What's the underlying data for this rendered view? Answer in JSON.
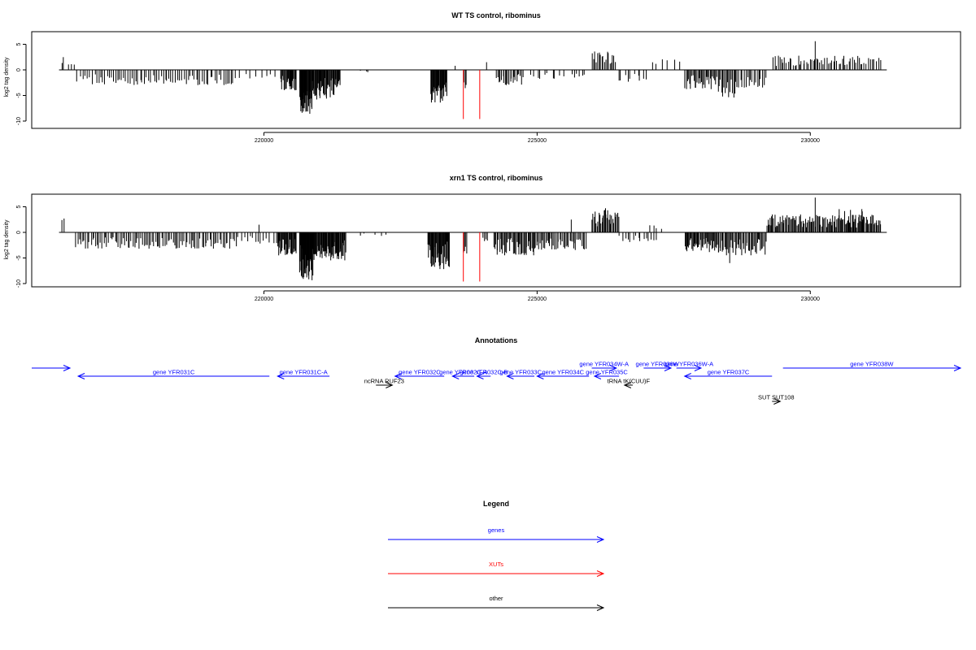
{
  "chart_data": [
    {
      "type": "bar",
      "title": "WT TS control, ribominus",
      "ylabel": "log2 tag density",
      "xlim": [
        215750,
        232750
      ],
      "ylim": [
        -10,
        7.5
      ],
      "x_ticks": [
        220000,
        225000,
        230000
      ],
      "x_tick_labels": [
        "220000",
        "225000",
        "230000"
      ],
      "y_ticks": [
        -10,
        -5,
        0,
        5
      ],
      "y_tick_labels": [
        "-10",
        "-5",
        "0",
        "5"
      ],
      "grid": false,
      "markers": {
        "color": "#ff0000",
        "x": [
          223650,
          223950
        ],
        "y_from": -9.6
      },
      "signal_segments": [
        {
          "x0": 216300,
          "x1": 216350,
          "amp": 3.0,
          "n": 2
        },
        {
          "x0": 216400,
          "x1": 216550,
          "amp": 1.2,
          "n": 3
        },
        {
          "x0": 216550,
          "x1": 216850,
          "amp": -2.6,
          "n": 6
        },
        {
          "x0": 216850,
          "x1": 219500,
          "amp": -3.0,
          "n": 70
        },
        {
          "x0": 219500,
          "x1": 220300,
          "amp": -1.8,
          "n": 8
        },
        {
          "x0": 220300,
          "x1": 220600,
          "amp": -4.0,
          "n": 25
        },
        {
          "x0": 220650,
          "x1": 220900,
          "amp": -8.6,
          "n": 30
        },
        {
          "x0": 220900,
          "x1": 221400,
          "amp": -5.8,
          "n": 45
        },
        {
          "x0": 221700,
          "x1": 222000,
          "amp": -0.6,
          "n": 3
        },
        {
          "x0": 223050,
          "x1": 223350,
          "amp": -6.5,
          "n": 30
        },
        {
          "x0": 223450,
          "x1": 223550,
          "amp": 0.8,
          "n": 1
        },
        {
          "x0": 223650,
          "x1": 223720,
          "amp": -4.0,
          "n": 3
        },
        {
          "x0": 224050,
          "x1": 224100,
          "amp": 1.5,
          "n": 1
        },
        {
          "x0": 224250,
          "x1": 224750,
          "amp": -3.0,
          "n": 22
        },
        {
          "x0": 224850,
          "x1": 225500,
          "amp": -1.8,
          "n": 10
        },
        {
          "x0": 225600,
          "x1": 225900,
          "amp": -1.6,
          "n": 6
        },
        {
          "x0": 226000,
          "x1": 226450,
          "amp": 3.8,
          "n": 18
        },
        {
          "x0": 226450,
          "x1": 227050,
          "amp": -2.5,
          "n": 10
        },
        {
          "x0": 227050,
          "x1": 227700,
          "amp": 2.2,
          "n": 6
        },
        {
          "x0": 227700,
          "x1": 228300,
          "amp": -3.8,
          "n": 30
        },
        {
          "x0": 228300,
          "x1": 228650,
          "amp": -5.5,
          "n": 16
        },
        {
          "x0": 228650,
          "x1": 229200,
          "amp": -3.5,
          "n": 18
        },
        {
          "x0": 229300,
          "x1": 231000,
          "amp": 2.8,
          "n": 55
        },
        {
          "x0": 230080,
          "x1": 230100,
          "amp": 5.6,
          "n": 1
        },
        {
          "x0": 231000,
          "x1": 231300,
          "amp": 2.4,
          "n": 8
        }
      ]
    },
    {
      "type": "bar",
      "title": "xrn1 TS control, ribominus",
      "ylabel": "log2 tag density",
      "xlim": [
        215750,
        232750
      ],
      "ylim": [
        -10,
        7.5
      ],
      "x_ticks": [
        220000,
        225000,
        230000
      ],
      "x_tick_labels": [
        "220000",
        "225000",
        "230000"
      ],
      "y_ticks": [
        -10,
        -5,
        0,
        5
      ],
      "y_tick_labels": [
        "-10",
        "-5",
        "0",
        "5"
      ],
      "grid": false,
      "markers": {
        "color": "#ff0000",
        "x": [
          223650,
          223950
        ],
        "y_from": -9.6
      },
      "signal_segments": [
        {
          "x0": 216300,
          "x1": 216350,
          "amp": 3.0,
          "n": 2
        },
        {
          "x0": 216550,
          "x1": 216850,
          "amp": -3.2,
          "n": 10
        },
        {
          "x0": 216850,
          "x1": 219500,
          "amp": -3.2,
          "n": 90
        },
        {
          "x0": 219900,
          "x1": 219920,
          "amp": 1.5,
          "n": 1
        },
        {
          "x0": 219500,
          "x1": 220300,
          "amp": -2.2,
          "n": 15
        },
        {
          "x0": 220250,
          "x1": 220600,
          "amp": -4.5,
          "n": 30
        },
        {
          "x0": 220650,
          "x1": 220900,
          "amp": -9.5,
          "n": 35
        },
        {
          "x0": 220900,
          "x1": 221500,
          "amp": -5.5,
          "n": 55
        },
        {
          "x0": 221700,
          "x1": 222300,
          "amp": -0.8,
          "n": 5
        },
        {
          "x0": 223000,
          "x1": 223400,
          "amp": -7.2,
          "n": 40
        },
        {
          "x0": 223650,
          "x1": 223720,
          "amp": -4.5,
          "n": 4
        },
        {
          "x0": 224000,
          "x1": 224100,
          "amp": -2.0,
          "n": 4
        },
        {
          "x0": 224200,
          "x1": 225000,
          "amp": -4.5,
          "n": 45
        },
        {
          "x0": 225000,
          "x1": 225900,
          "amp": -3.5,
          "n": 40
        },
        {
          "x0": 225600,
          "x1": 225650,
          "amp": 2.5,
          "n": 1
        },
        {
          "x0": 226000,
          "x1": 226500,
          "amp": 4.5,
          "n": 28
        },
        {
          "x0": 226200,
          "x1": 226300,
          "amp": 5.0,
          "n": 2
        },
        {
          "x0": 226500,
          "x1": 227200,
          "amp": -2.2,
          "n": 15
        },
        {
          "x0": 227000,
          "x1": 227300,
          "amp": 2.4,
          "n": 4
        },
        {
          "x0": 227700,
          "x1": 228400,
          "amp": -4.0,
          "n": 45
        },
        {
          "x0": 228400,
          "x1": 229200,
          "amp": -4.5,
          "n": 40
        },
        {
          "x0": 228500,
          "x1": 228550,
          "amp": -6.0,
          "n": 1
        },
        {
          "x0": 229200,
          "x1": 231300,
          "amp": 3.5,
          "n": 120
        },
        {
          "x0": 230080,
          "x1": 230100,
          "amp": 6.8,
          "n": 1
        },
        {
          "x0": 230500,
          "x1": 231000,
          "amp": 4.8,
          "n": 10
        }
      ]
    },
    {
      "type": "table",
      "title": "Annotations",
      "xlim": [
        215750,
        232750
      ],
      "colors": {
        "gene": "#0000ff",
        "other": "#000000"
      },
      "features": [
        {
          "label": "",
          "kind": "gene",
          "start": 215750,
          "end": 216450,
          "strand": "+",
          "lane": 0
        },
        {
          "label": "gene YFR031C",
          "kind": "gene",
          "start": 216600,
          "end": 220100,
          "strand": "-",
          "lane": 1
        },
        {
          "label": "gene YFR031C-A",
          "kind": "gene",
          "start": 220250,
          "end": 221200,
          "strand": "-",
          "lane": 1
        },
        {
          "label": "ncRNA RUF23",
          "kind": "other",
          "start": 222050,
          "end": 222350,
          "strand": "+",
          "lane": 2
        },
        {
          "label": "gene YFR032C",
          "kind": "gene",
          "start": 222400,
          "end": 223300,
          "strand": "-",
          "lane": 1
        },
        {
          "label": "gene YFR032C-A",
          "kind": "gene",
          "start": 223450,
          "end": 223850,
          "strand": "-",
          "lane": 1
        },
        {
          "label": "gene YFR032C-B",
          "kind": "gene",
          "start": 223900,
          "end": 224150,
          "strand": "-",
          "lane": 1
        },
        {
          "label": "gene YFR033C",
          "kind": "gene",
          "start": 224450,
          "end": 224950,
          "strand": "-",
          "lane": 1
        },
        {
          "label": "gene YFR034C",
          "kind": "gene",
          "start": 225000,
          "end": 225950,
          "strand": "-",
          "lane": 1
        },
        {
          "label": "gene YFR034W-A",
          "kind": "gene",
          "start": 226000,
          "end": 226450,
          "strand": "+",
          "lane": 0
        },
        {
          "label": "gene YFR035C",
          "kind": "gene",
          "start": 226050,
          "end": 226500,
          "strand": "-",
          "lane": 1
        },
        {
          "label": "tRNA tK(CUU)F",
          "kind": "other",
          "start": 226600,
          "end": 226750,
          "strand": "-",
          "lane": 2
        },
        {
          "label": "gene YFR036W",
          "kind": "gene",
          "start": 226950,
          "end": 227450,
          "strand": "+",
          "lane": 0
        },
        {
          "label": "gene YFR036W-A",
          "kind": "gene",
          "start": 227550,
          "end": 228000,
          "strand": "+",
          "lane": 0
        },
        {
          "label": "gene YFR037C",
          "kind": "gene",
          "start": 227700,
          "end": 229300,
          "strand": "-",
          "lane": 1
        },
        {
          "label": "SUT SUT108",
          "kind": "other",
          "start": 229300,
          "end": 229450,
          "strand": "+",
          "lane": 3
        },
        {
          "label": "gene YFR038W",
          "kind": "gene",
          "start": 229500,
          "end": 232750,
          "strand": "+",
          "lane": 0
        }
      ]
    },
    {
      "type": "table",
      "title": "Legend",
      "entries": [
        {
          "label": "genes",
          "color": "#0000ff"
        },
        {
          "label": "XUTs",
          "color": "#ff0000"
        },
        {
          "label": "other",
          "color": "#000000"
        }
      ]
    }
  ]
}
